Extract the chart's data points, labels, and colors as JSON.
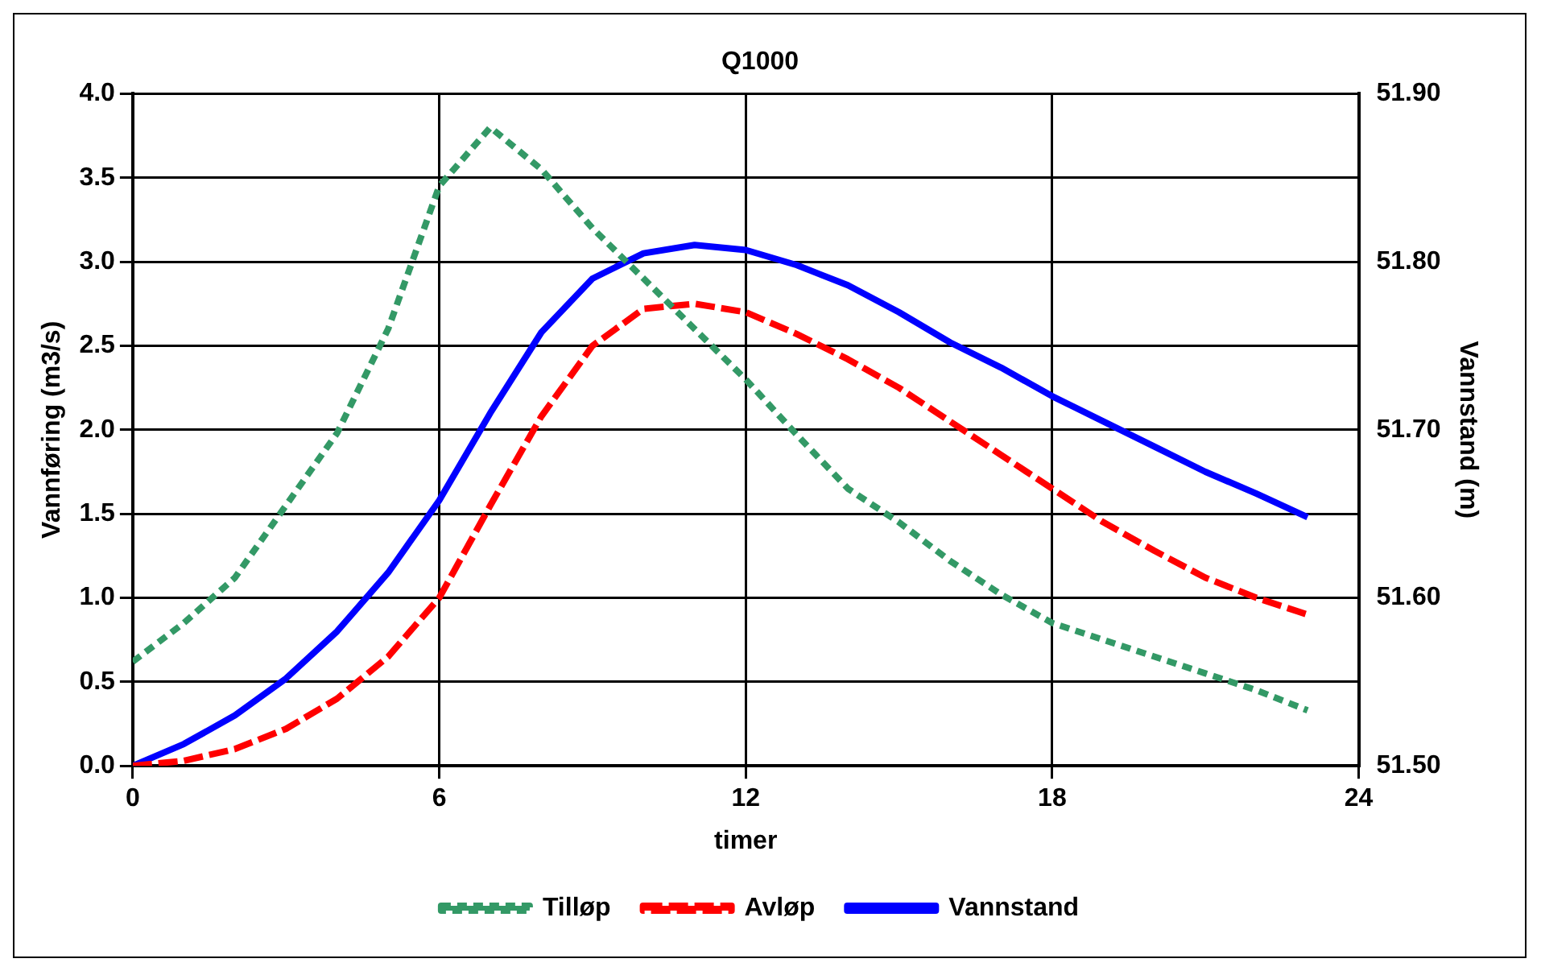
{
  "chart_data": {
    "type": "line",
    "title": "Q1000",
    "xlabel": "timer",
    "ylabel": "Vannføring (m3/s)",
    "y2label": "Vannstand (m)",
    "x": [
      0,
      1,
      2,
      3,
      4,
      5,
      6,
      7,
      8,
      9,
      10,
      11,
      12,
      13,
      14,
      15,
      16,
      17,
      18,
      19,
      20,
      21,
      22,
      23
    ],
    "series": [
      {
        "name": "Tilløp",
        "color": "#339966",
        "line_style": "dotted",
        "values": [
          0.62,
          0.85,
          1.12,
          1.55,
          1.98,
          2.6,
          3.45,
          3.8,
          3.55,
          3.2,
          2.9,
          2.6,
          2.3,
          1.97,
          1.65,
          1.45,
          1.22,
          1.02,
          0.85,
          0.75,
          0.65,
          0.55,
          0.45,
          0.33
        ]
      },
      {
        "name": "Avløp",
        "color": "#ff0000",
        "line_style": "dashed",
        "values": [
          0,
          0.03,
          0.1,
          0.22,
          0.4,
          0.65,
          1.0,
          1.55,
          2.08,
          2.5,
          2.72,
          2.75,
          2.7,
          2.57,
          2.42,
          2.25,
          2.05,
          1.85,
          1.65,
          1.45,
          1.28,
          1.12,
          1.0,
          0.9
        ]
      },
      {
        "name": "Vannstand",
        "color": "#0000ff",
        "line_style": "solid",
        "axis": "y2",
        "values": [
          51.5,
          51.513,
          51.53,
          51.552,
          51.58,
          51.615,
          51.658,
          51.71,
          51.758,
          51.79,
          51.805,
          51.81,
          51.807,
          51.798,
          51.786,
          51.77,
          51.752,
          51.737,
          51.72,
          51.705,
          51.69,
          51.675,
          51.662,
          51.648
        ]
      }
    ],
    "xlim": [
      0,
      24
    ],
    "xticks": [
      0,
      6,
      12,
      18,
      24
    ],
    "ylim": [
      0,
      4
    ],
    "yticks": [
      {
        "value": 0,
        "label": "0.0"
      },
      {
        "value": 0.5,
        "label": "0.5"
      },
      {
        "value": 1,
        "label": "1.0"
      },
      {
        "value": 1.5,
        "label": "1.5"
      },
      {
        "value": 2,
        "label": "2.0"
      },
      {
        "value": 2.5,
        "label": "2.5"
      },
      {
        "value": 3,
        "label": "3.0"
      },
      {
        "value": 3.5,
        "label": "3.5"
      },
      {
        "value": 4,
        "label": "4.0"
      }
    ],
    "y2lim": [
      51.5,
      51.9
    ],
    "y2ticks": [
      {
        "value": 51.5,
        "label": "51.50"
      },
      {
        "value": 51.6,
        "label": "51.60"
      },
      {
        "value": 51.7,
        "label": "51.70"
      },
      {
        "value": 51.8,
        "label": "51.80"
      },
      {
        "value": 51.9,
        "label": "51.90"
      }
    ],
    "grid": true,
    "legend": "bottom",
    "marker": "none"
  }
}
